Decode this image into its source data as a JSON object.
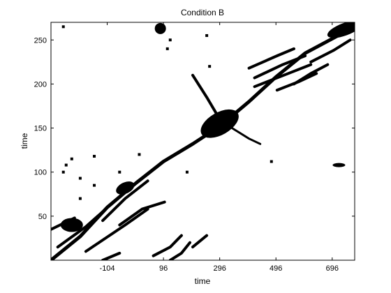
{
  "chart_data": {
    "type": "heatmap",
    "title": "Condition B",
    "xlabel": "time",
    "ylabel": "time",
    "xlim": [
      -304,
      776
    ],
    "ylim": [
      0,
      270
    ],
    "xticks": [
      -104,
      96,
      296,
      496,
      696
    ],
    "yticks": [
      50,
      100,
      150,
      200,
      250
    ],
    "grid": false,
    "colors": {
      "foreground": "#000000",
      "background": "#ffffff"
    },
    "value_description": "binary recurrence plot: black cells mark recurrent time pairs",
    "features": {
      "main_diagonal": [
        [
          -304,
          0
        ],
        [
          -200,
          27
        ],
        [
          -104,
          60
        ],
        [
          0,
          88
        ],
        [
          96,
          112
        ],
        [
          200,
          132
        ],
        [
          296,
          152
        ],
        [
          400,
          180
        ],
        [
          496,
          208
        ],
        [
          600,
          235
        ],
        [
          776,
          265
        ]
      ],
      "central_blob": {
        "x": 296,
        "y": 155
      },
      "upper_right_blob": {
        "x": 740,
        "y": 262
      },
      "left_block": {
        "x": -230,
        "y": 40
      },
      "mid_left_block": {
        "x": -40,
        "y": 82
      },
      "upper_left_arm": [
        [
          296,
          160
        ],
        [
          250,
          185
        ],
        [
          200,
          210
        ]
      ],
      "lower_right_arm": [
        [
          340,
          150
        ],
        [
          400,
          138
        ],
        [
          440,
          132
        ]
      ],
      "right_edge_patch": {
        "x": 720,
        "y": 108
      },
      "top_patch": {
        "x": 85,
        "y": 263
      },
      "parallel_diagonals": [
        [
          [
            -180,
            10
          ],
          [
            -40,
            40
          ],
          [
            40,
            58
          ]
        ],
        [
          [
            -280,
            15
          ],
          [
            -180,
            38
          ],
          [
            -120,
            55
          ]
        ],
        [
          [
            -120,
            45
          ],
          [
            -40,
            70
          ],
          [
            40,
            90
          ]
        ],
        [
          [
            -60,
            40
          ],
          [
            20,
            58
          ],
          [
            100,
            66
          ]
        ],
        [
          [
            -304,
            35
          ],
          [
            -220,
            48
          ]
        ],
        [
          [
            -120,
            0
          ],
          [
            -60,
            8
          ]
        ],
        [
          [
            60,
            5
          ],
          [
            120,
            15
          ],
          [
            160,
            28
          ]
        ],
        [
          [
            120,
            0
          ],
          [
            160,
            8
          ],
          [
            190,
            20
          ]
        ],
        [
          [
            200,
            15
          ],
          [
            250,
            28
          ]
        ]
      ],
      "upper_right_streaks": [
        [
          [
            400,
            218
          ],
          [
            500,
            232
          ],
          [
            560,
            240
          ]
        ],
        [
          [
            420,
            207
          ],
          [
            520,
            222
          ],
          [
            600,
            232
          ]
        ],
        [
          [
            420,
            197
          ],
          [
            540,
            212
          ],
          [
            620,
            222
          ]
        ],
        [
          [
            500,
            193
          ],
          [
            580,
            203
          ],
          [
            640,
            212
          ]
        ],
        [
          [
            560,
            200
          ],
          [
            620,
            212
          ],
          [
            680,
            222
          ]
        ],
        [
          [
            620,
            225
          ],
          [
            700,
            238
          ],
          [
            760,
            250
          ]
        ]
      ],
      "isolated_spots": [
        [
          -230,
          115
        ],
        [
          -250,
          108
        ],
        [
          -150,
          118
        ],
        [
          -60,
          100
        ],
        [
          -200,
          93
        ],
        [
          -260,
          100
        ],
        [
          260,
          220
        ],
        [
          250,
          255
        ],
        [
          120,
          250
        ],
        [
          110,
          240
        ],
        [
          -260,
          265
        ],
        [
          -150,
          85
        ],
        [
          180,
          100
        ],
        [
          480,
          112
        ],
        [
          10,
          120
        ],
        [
          -200,
          70
        ]
      ]
    }
  }
}
